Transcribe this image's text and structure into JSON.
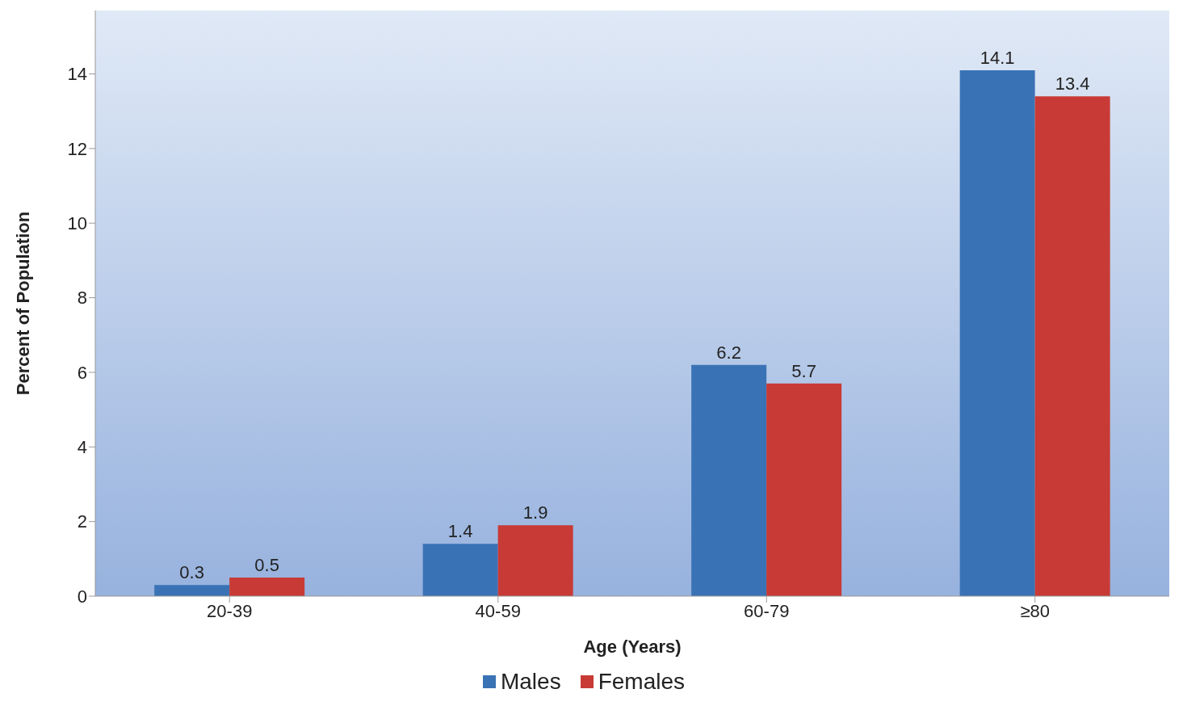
{
  "chart_data": {
    "type": "bar",
    "xlabel": "Age (Years)",
    "ylabel": "Percent of Population",
    "categories": [
      "20-39",
      "40-59",
      "60-79",
      "≥80"
    ],
    "series": [
      {
        "name": "Males",
        "color": "#3a73b5",
        "values": [
          0.3,
          1.4,
          6.2,
          14.1
        ]
      },
      {
        "name": "Females",
        "color": "#c83a35",
        "values": [
          0.5,
          1.9,
          5.7,
          13.4
        ]
      }
    ],
    "ylim": [
      0,
      15.7
    ],
    "yticks": [
      0,
      2,
      4,
      6,
      8,
      10,
      12,
      14
    ],
    "data_labels": true,
    "legend": "bottom"
  }
}
